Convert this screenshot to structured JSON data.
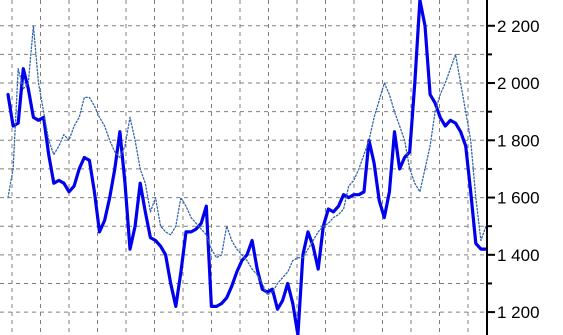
{
  "chart_data": {
    "type": "line",
    "title": "",
    "xlabel": "",
    "ylabel": "",
    "ylim": [
      1120,
      2290
    ],
    "grid": true,
    "y_axis_side": "right",
    "y_ticks": [
      1200,
      1400,
      1600,
      1800,
      2000,
      2200
    ],
    "y_tick_labels": [
      "1 200",
      "1 400",
      "1 600",
      "1 800",
      "2 000",
      "2 200"
    ],
    "x": [
      0,
      1,
      2,
      3,
      4,
      5,
      6,
      7,
      8,
      9,
      10,
      11,
      12,
      13,
      14,
      15,
      16,
      17,
      18,
      19,
      20,
      21,
      22,
      23,
      24,
      25,
      26,
      27,
      28,
      29,
      30,
      31,
      32,
      33,
      34,
      35,
      36,
      37,
      38,
      39,
      40,
      41,
      42,
      43,
      44,
      45,
      46,
      47,
      48,
      49,
      50,
      51,
      52,
      53,
      54,
      55,
      56,
      57,
      58,
      59,
      60,
      61,
      62,
      63,
      64,
      65,
      66,
      67,
      68,
      69,
      70,
      71,
      72,
      73,
      74,
      75,
      76,
      77,
      78,
      79,
      80,
      81,
      82,
      83,
      84,
      85,
      86,
      87,
      88,
      89,
      90,
      91,
      92,
      93,
      94
    ],
    "series": [
      {
        "color": "#0000ee",
        "style": "solid-thick",
        "values": [
          1960,
          1850,
          1860,
          2050,
          1980,
          1880,
          1870,
          1880,
          1750,
          1650,
          1660,
          1650,
          1620,
          1640,
          1700,
          1740,
          1730,
          1620,
          1480,
          1520,
          1600,
          1700,
          1830,
          1650,
          1420,
          1500,
          1650,
          1550,
          1460,
          1450,
          1430,
          1400,
          1300,
          1220,
          1340,
          1480,
          1480,
          1490,
          1510,
          1570,
          1220,
          1220,
          1230,
          1250,
          1290,
          1340,
          1380,
          1400,
          1450,
          1350,
          1280,
          1270,
          1280,
          1210,
          1240,
          1300,
          1230,
          1120,
          1400,
          1480,
          1430,
          1350,
          1500,
          1560,
          1550,
          1570,
          1610,
          1600,
          1610,
          1610,
          1620,
          1800,
          1720,
          1590,
          1530,
          1620,
          1830,
          1700,
          1740,
          1760,
          2000,
          2290,
          2200,
          1960,
          1930,
          1880,
          1850,
          1870,
          1860,
          1830,
          1780,
          1620,
          1440,
          1420,
          1420
        ]
      },
      {
        "color": "#3366aa",
        "style": "dotted",
        "values": [
          1600,
          1700,
          2050,
          1980,
          2000,
          2200,
          2000,
          1900,
          1800,
          1750,
          1780,
          1820,
          1800,
          1850,
          1880,
          1950,
          1950,
          1920,
          1880,
          1850,
          1800,
          1760,
          1740,
          1780,
          1880,
          1800,
          1700,
          1650,
          1550,
          1600,
          1500,
          1480,
          1470,
          1500,
          1600,
          1570,
          1530,
          1510,
          1490,
          1470,
          1420,
          1390,
          1400,
          1500,
          1450,
          1420,
          1400,
          1380,
          1350,
          1330,
          1300,
          1260,
          1270,
          1300,
          1320,
          1340,
          1380,
          1390,
          1390,
          1420,
          1450,
          1480,
          1500,
          1510,
          1530,
          1540,
          1560,
          1640,
          1660,
          1700,
          1750,
          1800,
          1880,
          1940,
          2000,
          1960,
          1900,
          1850,
          1800,
          1700,
          1650,
          1620,
          1700,
          1780,
          1900,
          1960,
          2000,
          2050,
          2100,
          2000,
          1900,
          1800,
          1600,
          1450,
          1500
        ]
      }
    ]
  }
}
